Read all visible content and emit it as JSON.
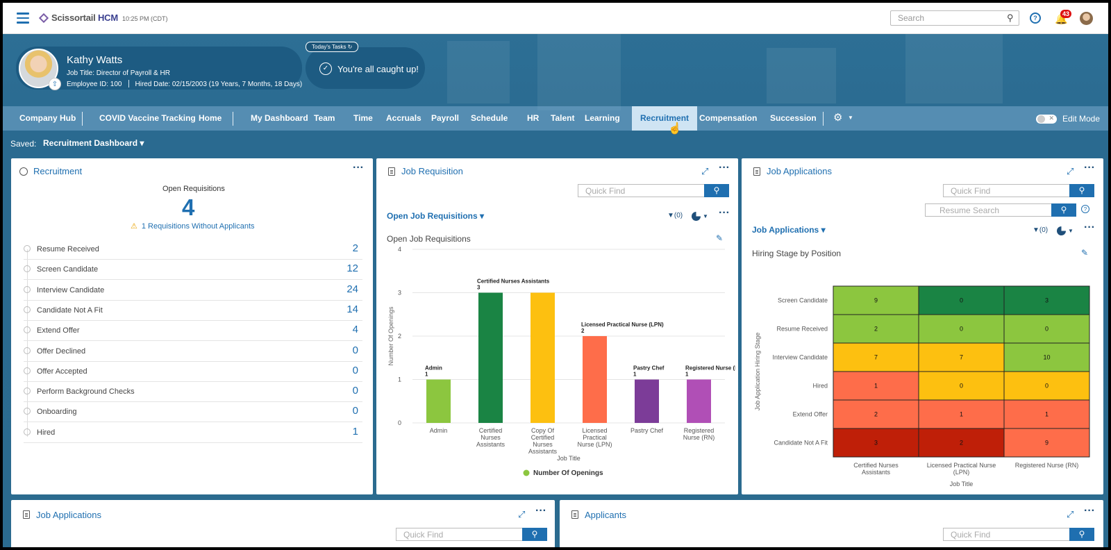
{
  "topbar": {
    "brand": "Scissortail",
    "brand_bold": "HCM",
    "clock": "10:25 PM (CDT)",
    "search_placeholder": "Search",
    "notif_count": "43"
  },
  "profile": {
    "name": "Kathy Watts",
    "job_title": "Job Title: Director of Payroll & HR",
    "employee_id": "Employee ID: 100",
    "hired": "Hired Date: 02/15/2003 (19 Years, 7 Months, 18 Days)"
  },
  "tasks": {
    "tab": "Today's Tasks",
    "message": "You're all caught up!"
  },
  "nav": {
    "items": [
      "Company Hub",
      "COVID Vaccine Tracking",
      "Home",
      "My Dashboard",
      "Team",
      "Time",
      "Accruals",
      "Payroll",
      "Schedule",
      "HR",
      "Talent",
      "Learning",
      "Recruitment",
      "Compensation",
      "Succession"
    ],
    "active": "Recruitment",
    "edit_mode": "Edit Mode"
  },
  "saved": {
    "label": "Saved:",
    "value": "Recruitment Dashboard"
  },
  "recruitment": {
    "title": "Recruitment",
    "open_label": "Open Requisitions",
    "open_count": "4",
    "warning": "1 Requisitions Without Applicants",
    "stages": [
      {
        "label": "Resume Received",
        "value": "2"
      },
      {
        "label": "Screen Candidate",
        "value": "12"
      },
      {
        "label": "Interview Candidate",
        "value": "24"
      },
      {
        "label": "Candidate Not A Fit",
        "value": "14"
      },
      {
        "label": "Extend Offer",
        "value": "4"
      },
      {
        "label": "Offer Declined",
        "value": "0"
      },
      {
        "label": "Offer Accepted",
        "value": "0"
      },
      {
        "label": "Perform Background Checks",
        "value": "0"
      },
      {
        "label": "Onboarding",
        "value": "0"
      },
      {
        "label": "Hired",
        "value": "1"
      }
    ]
  },
  "job_requisition": {
    "title": "Job Requisition",
    "quick_find": "Quick Find",
    "view": "Open Job Requisitions",
    "filter": "(0)",
    "chart_title": "Open Job Requisitions"
  },
  "job_applications": {
    "title": "Job Applications",
    "quick_find": "Quick Find",
    "resume_search": "Resume Search",
    "view": "Job Applications",
    "filter": "(0)",
    "chart_title": "Hiring Stage by Position"
  },
  "bottom": {
    "job_applications_title": "Job Applications",
    "applicants_title": "Applicants",
    "quick_find": "Quick Find"
  },
  "chart_data": [
    {
      "type": "bar",
      "title": "Open Job Requisitions",
      "xlabel": "Job Title",
      "ylabel": "Number Of Openings",
      "ylim": [
        0,
        4
      ],
      "yticks": [
        "0",
        "1",
        "2",
        "3",
        "4"
      ],
      "categories": [
        "Admin",
        "Certified Nurses Assistants",
        "Copy Of Certified Nurses Assistants",
        "Licensed Practical Nurse (LPN)",
        "Pastry Chef",
        "Registered Nurse (RN)"
      ],
      "values": [
        1,
        3,
        3,
        2,
        1,
        1
      ],
      "data_labels": [
        {
          "name": "Admin",
          "value": "1"
        },
        {
          "name": "Certified Nurses Assistants",
          "value": "3"
        },
        {
          "name": "",
          "value": ""
        },
        {
          "name": "Licensed Practical Nurse (LPN)",
          "value": "2"
        },
        {
          "name": "Pastry Chef",
          "value": "1"
        },
        {
          "name": "Registered Nurse (RN)",
          "value": "1"
        }
      ],
      "colors": [
        "#8cc63f",
        "#1a8444",
        "#fdc010",
        "#fe6d4a",
        "#7c3c98",
        "#b04fb6"
      ],
      "legend": [
        {
          "name": "Number Of Openings",
          "color": "#8cc63f"
        }
      ],
      "legend_position": "bottom",
      "grid": true
    },
    {
      "type": "heatmap",
      "title": "Hiring Stage by Position",
      "xlabel": "Job Title",
      "ylabel": "Job Application Hiring Stage",
      "columns": [
        "Certified Nurses Assistants",
        "Licensed Practical Nurse (LPN)",
        "Registered Nurse (RN)"
      ],
      "rows": [
        "Screen Candidate",
        "Resume Received",
        "Interview Candidate",
        "Hired",
        "Extend Offer",
        "Candidate Not A Fit"
      ],
      "values": [
        [
          9,
          0,
          3
        ],
        [
          2,
          0,
          0
        ],
        [
          7,
          7,
          10
        ],
        [
          1,
          0,
          0
        ],
        [
          2,
          1,
          1
        ],
        [
          3,
          2,
          9
        ]
      ],
      "colors": [
        [
          "#8cc63f",
          "#1a8444",
          "#1a8444"
        ],
        [
          "#8cc63f",
          "#8cc63f",
          "#8cc63f"
        ],
        [
          "#fdc010",
          "#fdc010",
          "#8cc63f"
        ],
        [
          "#fe6d4a",
          "#fdc010",
          "#fdc010"
        ],
        [
          "#fe6d4a",
          "#fe6d4a",
          "#fe6d4a"
        ],
        [
          "#bf1f08",
          "#bf1f08",
          "#fe6d4a"
        ]
      ]
    }
  ]
}
